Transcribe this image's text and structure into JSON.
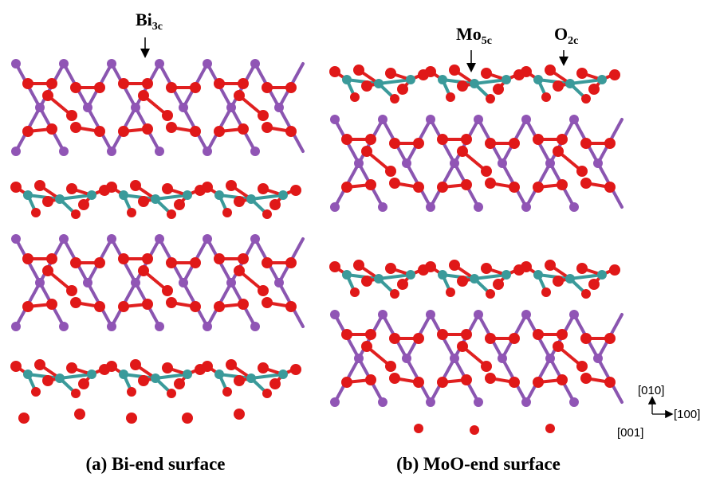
{
  "panels": [
    {
      "caption": "(a) Bi-end surface",
      "labels": [
        {
          "base": "Bi",
          "sub": "3c"
        }
      ]
    },
    {
      "caption": "(b) MoO-end surface",
      "labels": [
        {
          "base": "Mo",
          "sub": "5c"
        },
        {
          "base": "O",
          "sub": "2c"
        }
      ]
    }
  ],
  "axes": {
    "up": "[010]",
    "out": "[001]",
    "right": "[100]"
  }
}
